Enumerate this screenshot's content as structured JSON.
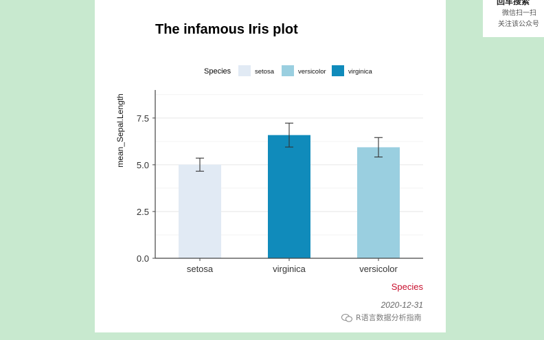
{
  "chart_data": {
    "type": "bar",
    "title": "The infamous Iris plot",
    "xlabel": "Species",
    "ylabel": "mean_Sepal.Length",
    "categories": [
      "setosa",
      "virginica",
      "versicolor"
    ],
    "values": [
      5.006,
      6.588,
      5.936
    ],
    "error": [
      0.35,
      0.64,
      0.52
    ],
    "bar_colors": [
      "#e1eaf4",
      "#108bbb",
      "#9acfe0"
    ],
    "ylim": [
      0,
      9
    ],
    "yticks": [
      0.0,
      2.5,
      5.0,
      7.5
    ],
    "ytick_labels": [
      "0.0",
      "2.5",
      "5.0",
      "7.5"
    ],
    "grid": "horizontal",
    "legend": {
      "title": "Species",
      "position": "top",
      "entries": [
        {
          "label": "setosa",
          "color": "#e1eaf4"
        },
        {
          "label": "versicolor",
          "color": "#9acfe0"
        },
        {
          "label": "virginica",
          "color": "#108bbb"
        }
      ]
    },
    "caption": "2020-12-31",
    "xlabel_color": "#c8102e"
  },
  "watermark": {
    "text": "R语言数据分析指南",
    "icon": "wechat-icon"
  },
  "qr_card": {
    "top": "回车搜索",
    "line1": "微信扫一扫",
    "line2": "关注该公众号"
  },
  "colors": {
    "background": "#c8e9cf",
    "panel": "#ffffff",
    "axis": "#444444",
    "grid": "#ebebeb"
  }
}
